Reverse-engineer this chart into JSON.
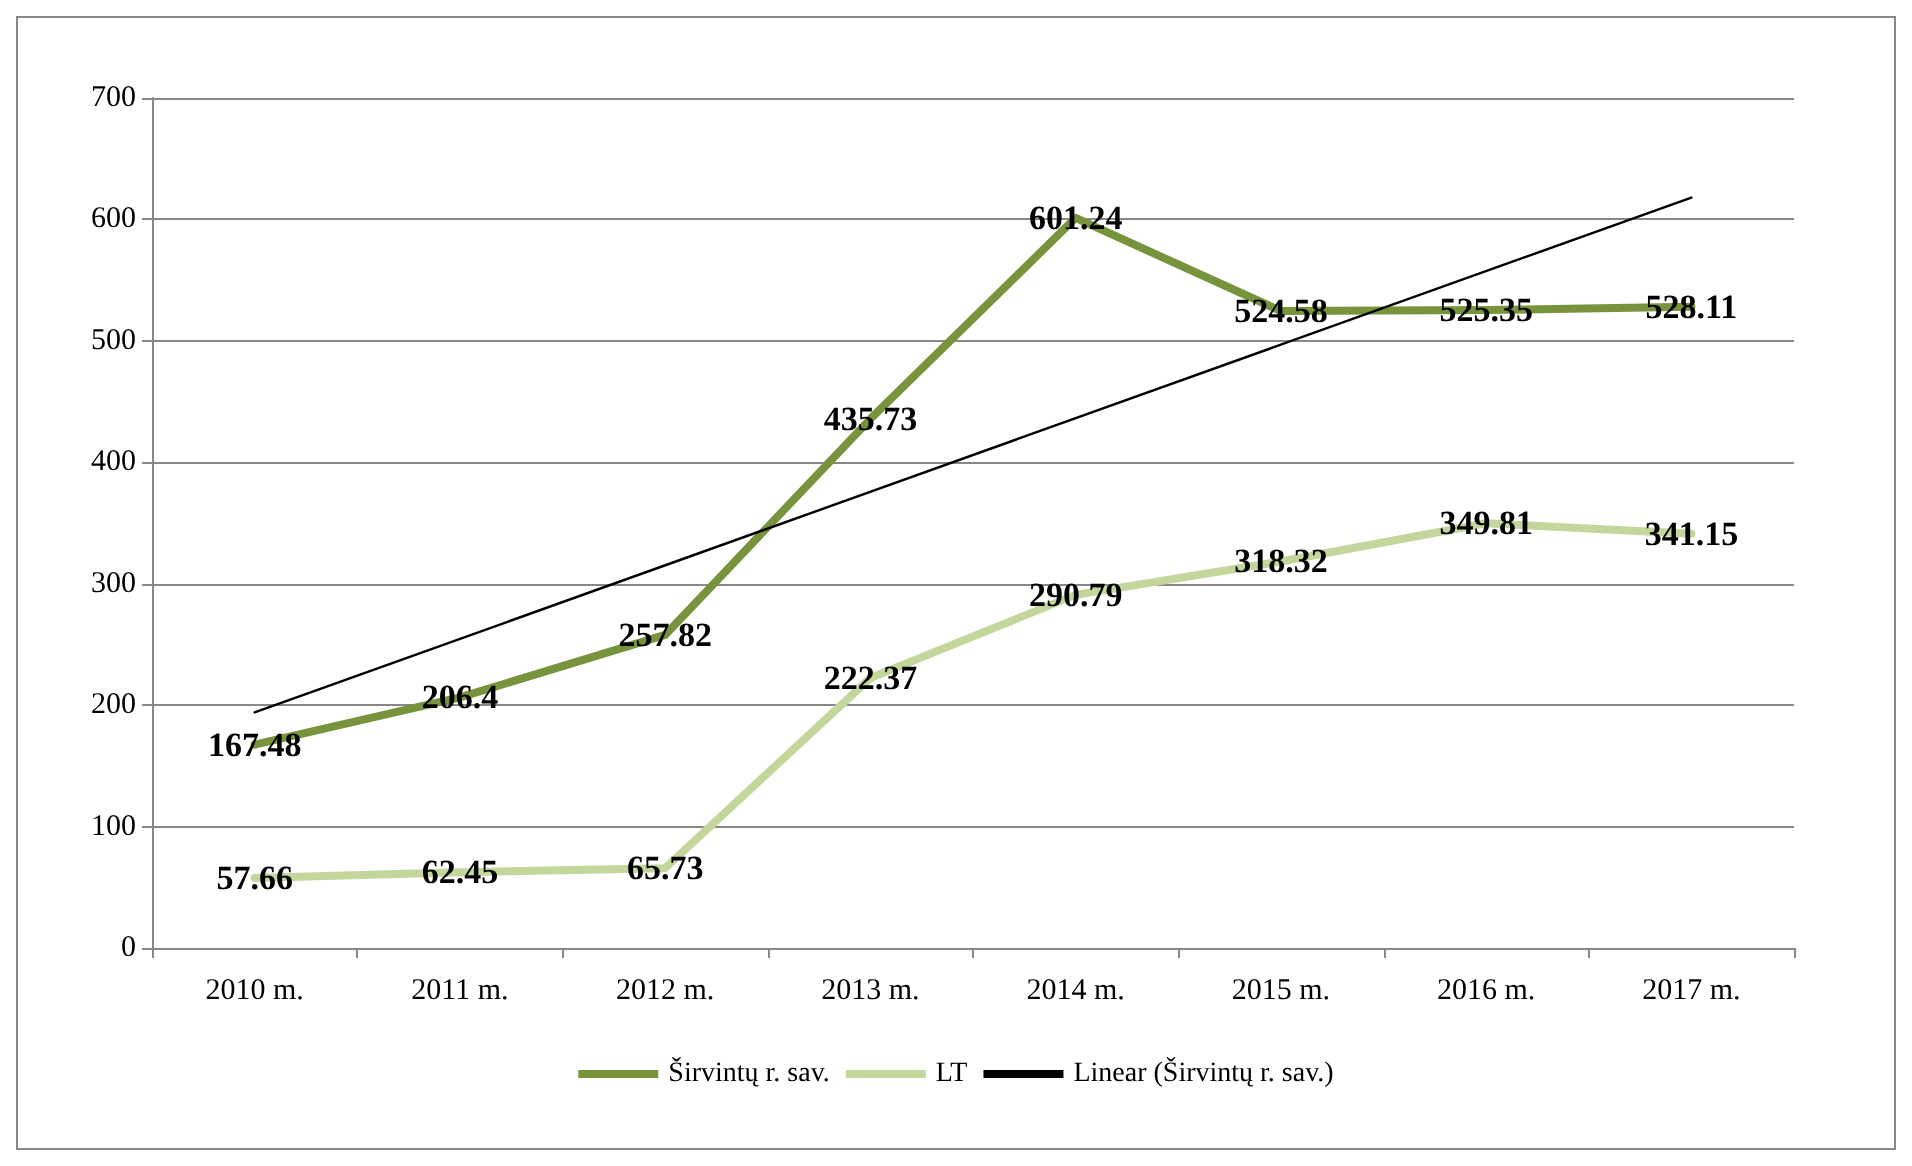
{
  "chart_data": {
    "type": "line",
    "categories": [
      "2010 m.",
      "2011 m.",
      "2012 m.",
      "2013 m.",
      "2014 m.",
      "2015 m.",
      "2016 m.",
      "2017 m."
    ],
    "series": [
      {
        "name": "Širvintų r. sav.",
        "color": "#77933c",
        "values": [
          167.48,
          206.4,
          257.82,
          435.73,
          601.24,
          524.58,
          525.35,
          528.11
        ]
      },
      {
        "name": "LT",
        "color": "#c3d69b",
        "values": [
          57.66,
          62.45,
          65.73,
          222.37,
          290.79,
          318.32,
          349.81,
          341.15
        ]
      },
      {
        "name": "Linear (Širvintų r. sav.)",
        "color": "#000000",
        "x": [
          "2010 m.",
          "2017 m."
        ],
        "values": [
          194,
          618
        ],
        "value_labels": [
          null,
          null
        ]
      }
    ],
    "ylim": [
      0,
      700
    ],
    "yticks": [
      0,
      100,
      200,
      300,
      400,
      500,
      600,
      700
    ],
    "grid": "y",
    "legend": "bottom",
    "marker": "none",
    "line_style": "solid",
    "data_labels": true
  }
}
